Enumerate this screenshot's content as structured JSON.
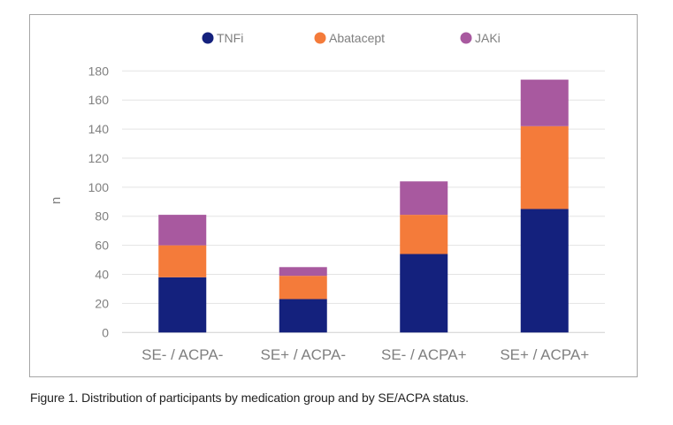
{
  "chart_data": {
    "type": "bar",
    "stacked": true,
    "title": "",
    "xlabel": "",
    "ylabel": "n",
    "ylim": [
      0,
      180
    ],
    "yticks": [
      0,
      20,
      40,
      60,
      80,
      100,
      120,
      140,
      160,
      180
    ],
    "grid": true,
    "legend_position": "top",
    "categories": [
      "SE- / ACPA-",
      "SE+ / ACPA-",
      "SE- / ACPA+",
      "SE+ / ACPA+"
    ],
    "series": [
      {
        "name": "TNFi",
        "color": "#14217d",
        "values": [
          38,
          23,
          54,
          85
        ]
      },
      {
        "name": "Abatacept",
        "color": "#f47b3a",
        "values": [
          22,
          16,
          27,
          57
        ]
      },
      {
        "name": "JAKi",
        "color": "#a8599f",
        "values": [
          21,
          6,
          23,
          32
        ]
      }
    ]
  },
  "caption": "Figure 1. Distribution of participants by medication group and by SE/ACPA status."
}
